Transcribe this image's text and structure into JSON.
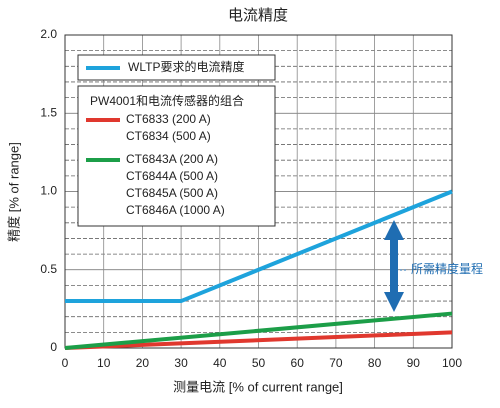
{
  "chart_data": {
    "type": "line",
    "title": "电流精度",
    "x_label": "测量电流 [% of current range]",
    "y_label": "精度 [% of range]",
    "xlim": [
      0,
      100
    ],
    "xticks": [
      0,
      10,
      20,
      30,
      40,
      50,
      60,
      70,
      80,
      90,
      100
    ],
    "ylim": [
      0,
      2.0
    ],
    "yticks": [
      0,
      0.5,
      {
        "value": 1.0,
        "label": "1.0"
      },
      1.5,
      {
        "value": 2.0,
        "label": "2.0"
      }
    ],
    "y_minor_grid": [
      0.1,
      0.2,
      0.3,
      0.4,
      0.6,
      0.7,
      0.8,
      0.9,
      1.1,
      1.2,
      1.3,
      1.4,
      1.6,
      1.7,
      1.8,
      1.9
    ],
    "grid": true,
    "legend_group_title": "PW4001和电流传感器的组合",
    "annotation": "所需精度量程",
    "series": [
      {
        "names": [
          "WLTP要求的电流精度"
        ],
        "color": "#1ea3dc",
        "x": [
          0,
          30,
          100
        ],
        "values": [
          0.3,
          0.3,
          1.0
        ]
      },
      {
        "names": [
          "CT6833 (200 A)",
          "CT6834 (500 A)"
        ],
        "color": "#e0382e",
        "x": [
          0,
          100
        ],
        "values": [
          0,
          0.1
        ]
      },
      {
        "names": [
          "CT6843A (200 A)",
          "CT6844A (500 A)",
          "CT6845A (500 A)",
          "CT6846A (1000 A)"
        ],
        "color": "#1c9e48",
        "x": [
          0,
          100
        ],
        "values": [
          0,
          0.22
        ]
      }
    ]
  }
}
